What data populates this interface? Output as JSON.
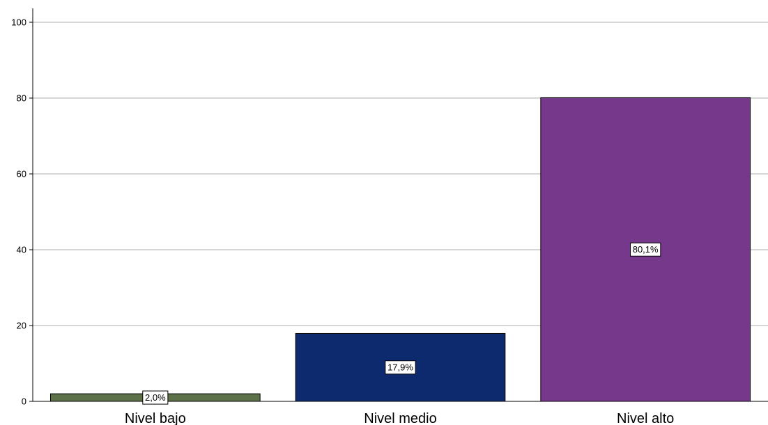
{
  "chart_data": {
    "type": "bar",
    "title": "",
    "xlabel": "",
    "ylabel": "",
    "categories": [
      "Nivel bajo",
      "Nivel medio",
      "Nivel alto"
    ],
    "values": [
      2.0,
      17.9,
      80.1
    ],
    "data_labels": [
      "2,0%",
      "17,9%",
      "80,1%"
    ],
    "colors": [
      "#5d7148",
      "#0e2a6e",
      "#76388b"
    ],
    "ylim": [
      0,
      100
    ],
    "yticks": [
      0,
      20,
      40,
      60,
      80,
      100
    ],
    "grid": true,
    "legend": "none"
  }
}
